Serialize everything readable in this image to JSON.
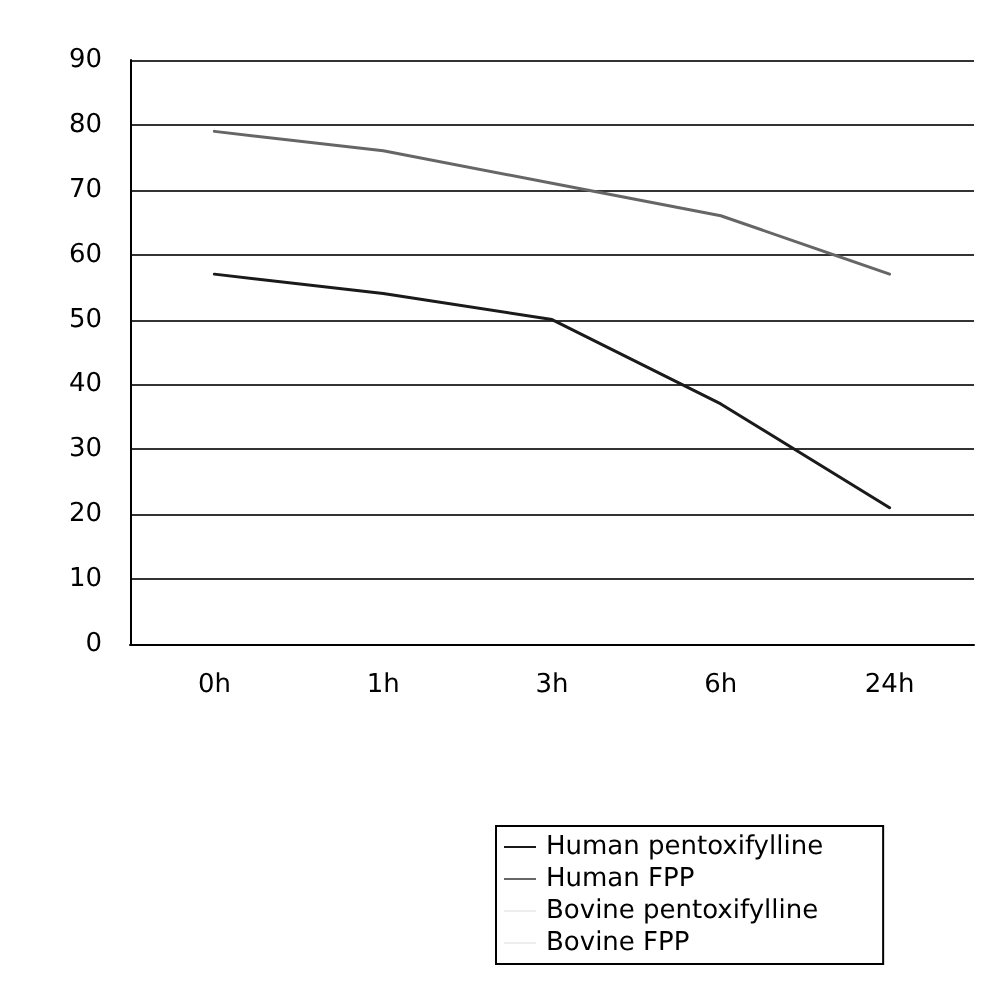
{
  "chart_data": {
    "type": "line",
    "categories": [
      "0h",
      "1h",
      "3h",
      "6h",
      "24h"
    ],
    "series": [
      {
        "name": "Human pentoxifylline",
        "color": "#1a1a1a",
        "values": [
          57,
          54,
          50,
          37,
          21
        ]
      },
      {
        "name": "Human FPP",
        "color": "#666666",
        "values": [
          79,
          76,
          71,
          66,
          57
        ]
      },
      {
        "name": "Bovine pentoxifylline",
        "color": "#eeeeee",
        "values": [
          null,
          null,
          null,
          null,
          null
        ]
      },
      {
        "name": "Bovine FPP",
        "color": "#eeeeee",
        "values": [
          null,
          null,
          null,
          null,
          null
        ]
      }
    ],
    "ylim": [
      0,
      90
    ],
    "yticks": [
      0,
      10,
      20,
      30,
      40,
      50,
      60,
      70,
      80,
      90
    ],
    "grid": "y",
    "legend": "bottom",
    "marker": "none",
    "line_style": "solid"
  }
}
